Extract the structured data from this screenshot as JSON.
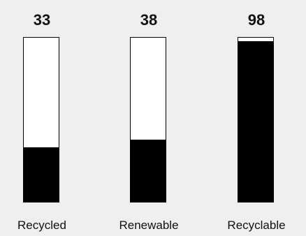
{
  "chart_data": {
    "type": "bar",
    "categories": [
      "Recycled",
      "Renewable",
      "Recyclable"
    ],
    "values": [
      33,
      38,
      98
    ],
    "value_labels": [
      "33",
      "38",
      "98"
    ],
    "ylim": [
      0,
      100
    ],
    "title": "",
    "xlabel": "",
    "ylabel": "",
    "grid": false,
    "colors": {
      "fill": "#000000",
      "empty": "#ffffff",
      "background": "#efefef"
    }
  }
}
